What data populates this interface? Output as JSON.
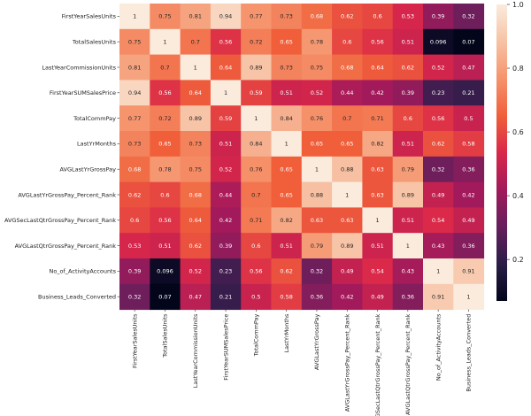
{
  "chart_data": {
    "type": "heatmap",
    "title": "",
    "xlabel": "",
    "ylabel": "",
    "variables": [
      "FirstYearSalesUnits",
      "TotalSalesUnits",
      "LastYearCommissionUnits",
      "FirstYearSUMSalesPrice",
      "TotalCommPay",
      "LastYrMonths",
      "AVGLastYrGrossPay",
      "AVGLastYrGrossPay_Percent_Rank",
      "AVGSecLastQtrGrossPay_Percent_Rank",
      "AVGLastQtrGrossPay_Percent_Rank",
      "No_of_ActivityAccounts",
      "Business_Leads_Converted"
    ],
    "values": [
      [
        1,
        0.75,
        0.81,
        0.94,
        0.77,
        0.73,
        0.68,
        0.62,
        0.6,
        0.53,
        0.39,
        0.32
      ],
      [
        0.75,
        1,
        0.7,
        0.56,
        0.72,
        0.65,
        0.78,
        0.6,
        0.56,
        0.51,
        0.096,
        0.07
      ],
      [
        0.81,
        0.7,
        1,
        0.64,
        0.89,
        0.73,
        0.75,
        0.68,
        0.64,
        0.62,
        0.52,
        0.47
      ],
      [
        0.94,
        0.56,
        0.64,
        1,
        0.59,
        0.51,
        0.52,
        0.44,
        0.42,
        0.39,
        0.23,
        0.21
      ],
      [
        0.77,
        0.72,
        0.89,
        0.59,
        1,
        0.84,
        0.76,
        0.7,
        0.71,
        0.6,
        0.56,
        0.5
      ],
      [
        0.73,
        0.65,
        0.73,
        0.51,
        0.84,
        1,
        0.65,
        0.65,
        0.82,
        0.51,
        0.62,
        0.58
      ],
      [
        0.68,
        0.78,
        0.75,
        0.52,
        0.76,
        0.65,
        1,
        0.88,
        0.63,
        0.79,
        0.32,
        0.36
      ],
      [
        0.62,
        0.6,
        0.68,
        0.44,
        0.7,
        0.65,
        0.88,
        1,
        0.63,
        0.89,
        0.49,
        0.42
      ],
      [
        0.6,
        0.56,
        0.64,
        0.42,
        0.71,
        0.82,
        0.63,
        0.63,
        1,
        0.51,
        0.54,
        0.49
      ],
      [
        0.53,
        0.51,
        0.62,
        0.39,
        0.6,
        0.51,
        0.79,
        0.89,
        0.51,
        1,
        0.43,
        0.36
      ],
      [
        0.39,
        0.096,
        0.52,
        0.23,
        0.56,
        0.62,
        0.32,
        0.49,
        0.54,
        0.43,
        1,
        0.91
      ],
      [
        0.32,
        0.07,
        0.47,
        0.21,
        0.5,
        0.58,
        0.36,
        0.42,
        0.49,
        0.36,
        0.91,
        1
      ]
    ],
    "colorbar": {
      "range": [
        0.07,
        1.0
      ],
      "ticks": [
        "0.2",
        "0.4",
        "0.6",
        "0.8",
        "1.0"
      ],
      "tick_values": [
        0.2,
        0.4,
        0.6,
        0.8,
        1.0
      ]
    },
    "colormap": "rocket",
    "colormap_stops": [
      "#03051a",
      "#2b1d47",
      "#661f5c",
      "#a11a5b",
      "#d9274a",
      "#f0603a",
      "#f5936c",
      "#f7c2a4",
      "#faebdd"
    ],
    "grid": false,
    "legend_placement": "right"
  }
}
